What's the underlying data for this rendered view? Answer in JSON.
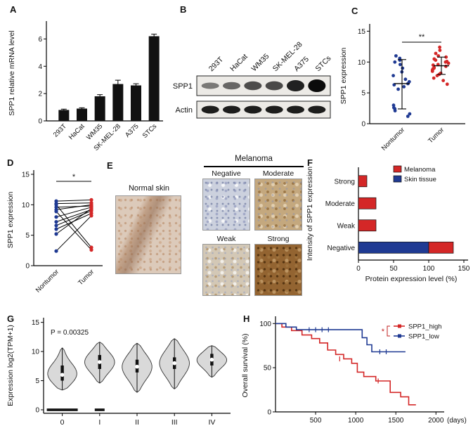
{
  "figure": {
    "bg": "#ffffff"
  },
  "colors": {
    "red": "#d42727",
    "blue": "#1f3a93",
    "bar": "#111111"
  },
  "panels": {
    "A": {
      "label": "A"
    },
    "B": {
      "label": "B"
    },
    "C": {
      "label": "C"
    },
    "D": {
      "label": "D"
    },
    "E": {
      "label": "E"
    },
    "F": {
      "label": "F"
    },
    "G": {
      "label": "G"
    },
    "H": {
      "label": "H"
    }
  },
  "western_blot": {
    "lanes": [
      "293T",
      "HaCat",
      "WM35",
      "SK-MEL-28",
      "A375",
      "STCs"
    ],
    "rows": [
      {
        "name": "SPP1",
        "intensities": [
          0.3,
          0.42,
          0.58,
          0.6,
          0.85,
          1.0
        ]
      },
      {
        "name": "Actin",
        "intensities": [
          0.9,
          0.82,
          0.85,
          0.88,
          0.9,
          0.92
        ]
      }
    ]
  },
  "ihc": {
    "group_title": "Melanoma",
    "normal_label": "Normal skin",
    "tiles": [
      {
        "label": "Negative",
        "texture": "negative"
      },
      {
        "label": "Moderate",
        "texture": "moderate"
      },
      {
        "label": "Weak",
        "texture": "weak"
      },
      {
        "label": "Strong",
        "texture": "strong"
      }
    ]
  },
  "chart_data": [
    {
      "id": "A",
      "type": "bar",
      "ylabel": "SPP1 relative mRNA level",
      "categories": [
        "293T",
        "HaCat",
        "WM35",
        "SK-MEL-28",
        "A375",
        "STCs"
      ],
      "values": [
        0.8,
        0.9,
        1.8,
        2.7,
        2.6,
        6.2
      ],
      "errors": [
        0.06,
        0.06,
        0.12,
        0.28,
        0.12,
        0.15
      ],
      "ylim": [
        0,
        7
      ],
      "yticks": [
        0,
        2,
        4,
        6
      ],
      "bar_color": "#111111"
    },
    {
      "id": "C",
      "type": "dotplot",
      "ylabel": "SPP1 expression",
      "ylim": [
        0,
        15.5
      ],
      "yticks": [
        0,
        5,
        10,
        15
      ],
      "significance": "**",
      "groups": [
        {
          "name": "Nontumor",
          "color": "#1f3a93",
          "median": 6.5,
          "lo": 2.4,
          "hi": 10.4,
          "points": [
            1.2,
            1.6,
            2.1,
            2.4,
            2.6,
            3.0,
            5.6,
            6.0,
            6.3,
            6.5,
            6.8,
            7.2,
            7.8,
            8.4,
            9.0,
            9.6,
            10.0,
            10.3,
            10.6,
            11.0
          ]
        },
        {
          "name": "Tumor",
          "color": "#d42727",
          "median": 9.4,
          "lo": 8.0,
          "hi": 10.8,
          "points": [
            6.4,
            7.0,
            7.4,
            7.8,
            8.0,
            8.2,
            8.5,
            8.7,
            8.9,
            9.0,
            9.1,
            9.3,
            9.5,
            9.6,
            9.8,
            10.0,
            10.1,
            10.3,
            10.5,
            10.8,
            11.0,
            11.4,
            11.9,
            12.4
          ]
        }
      ]
    },
    {
      "id": "D",
      "type": "paired",
      "ylabel": "SPP1 expression",
      "categories": [
        "Nontumor",
        "Tumor"
      ],
      "ylim": [
        0,
        15
      ],
      "yticks": [
        0,
        5,
        10,
        15
      ],
      "significance": "*",
      "colors": [
        "#1f3a93",
        "#d42727"
      ],
      "pairs": [
        [
          10.6,
          10.8
        ],
        [
          10.2,
          10.3
        ],
        [
          10.0,
          3.0
        ],
        [
          9.6,
          9.8
        ],
        [
          9.2,
          10.0
        ],
        [
          8.9,
          2.6
        ],
        [
          8.0,
          9.6
        ],
        [
          7.2,
          9.2
        ],
        [
          6.6,
          9.0
        ],
        [
          6.0,
          8.6
        ],
        [
          5.2,
          9.4
        ],
        [
          2.4,
          8.2
        ]
      ]
    },
    {
      "id": "F",
      "type": "hstack",
      "xlabel": "Protein expression level (%)",
      "ylabel": "Intensity of SPP1 expression",
      "xlim": [
        0,
        150
      ],
      "xticks": [
        0,
        50,
        100,
        150
      ],
      "legend": [
        {
          "name": "Melanoma",
          "color": "#d42727"
        },
        {
          "name": "Skin tissue",
          "color": "#1f3a93"
        }
      ],
      "rows": [
        {
          "label": "Strong",
          "segments": [
            {
              "series": "Melanoma",
              "value": 12
            }
          ]
        },
        {
          "label": "Moderate",
          "segments": [
            {
              "series": "Melanoma",
              "value": 25
            }
          ]
        },
        {
          "label": "Weak",
          "segments": [
            {
              "series": "Melanoma",
              "value": 25
            }
          ]
        },
        {
          "label": "Negative",
          "segments": [
            {
              "series": "Skin tissue",
              "value": 100
            },
            {
              "series": "Melanoma",
              "value": 35
            }
          ]
        }
      ]
    },
    {
      "id": "G",
      "type": "violin",
      "ylabel": "Expression log2(TPM+1)",
      "annotation": "P = 0.00325",
      "categories": [
        "0",
        "I",
        "II",
        "III",
        "IV"
      ],
      "ylim": [
        -0.6,
        15.8
      ],
      "yticks": [
        0,
        5,
        10,
        15
      ],
      "fill": "#d9d9d9",
      "violins": [
        {
          "median": 6.0,
          "q1": 5.0,
          "q3": 7.6,
          "min": 3.4,
          "max": 10.6,
          "zero_bar": 44
        },
        {
          "median": 8.2,
          "q1": 7.0,
          "q3": 9.4,
          "min": 4.6,
          "max": 11.6,
          "zero_bar": 14
        },
        {
          "median": 7.4,
          "q1": 6.4,
          "q3": 8.6,
          "min": 3.0,
          "max": 11.4,
          "zero_bar": 0
        },
        {
          "median": 8.0,
          "q1": 7.0,
          "q3": 9.0,
          "min": 3.6,
          "max": 12.2,
          "zero_bar": 0
        },
        {
          "median": 8.6,
          "q1": 7.6,
          "q3": 9.6,
          "min": 5.6,
          "max": 11.0,
          "zero_bar": 0
        }
      ]
    },
    {
      "id": "H",
      "type": "km",
      "ylabel": "Overall survival (%)",
      "xlabel": "(days)",
      "xlim": [
        0,
        2050
      ],
      "xticks": [
        500,
        1000,
        1500,
        2000
      ],
      "ylim": [
        0,
        105
      ],
      "yticks": [
        0,
        50,
        100
      ],
      "significance": "*",
      "series": [
        {
          "name": "SPP1_high",
          "color": "#d42727",
          "points": [
            [
              0,
              100
            ],
            [
              80,
              96
            ],
            [
              200,
              92
            ],
            [
              330,
              87
            ],
            [
              450,
              83
            ],
            [
              550,
              78
            ],
            [
              650,
              70
            ],
            [
              750,
              65
            ],
            [
              850,
              60
            ],
            [
              950,
              55
            ],
            [
              1020,
              45
            ],
            [
              1100,
              40
            ],
            [
              1250,
              35
            ],
            [
              1430,
              22
            ],
            [
              1560,
              17
            ],
            [
              1660,
              8
            ],
            [
              1750,
              8
            ]
          ],
          "censors": [
            [
              800,
              60
            ],
            [
              1280,
              35
            ]
          ]
        },
        {
          "name": "SPP1_low",
          "color": "#1f3a93",
          "points": [
            [
              0,
              100
            ],
            [
              130,
              96
            ],
            [
              260,
              93
            ],
            [
              1030,
              93
            ],
            [
              1080,
              84
            ],
            [
              1140,
              76
            ],
            [
              1200,
              68
            ],
            [
              1620,
              68
            ]
          ],
          "censors": [
            [
              420,
              93
            ],
            [
              500,
              93
            ],
            [
              580,
              93
            ],
            [
              660,
              93
            ],
            [
              1300,
              68
            ],
            [
              1380,
              68
            ]
          ]
        }
      ]
    }
  ]
}
